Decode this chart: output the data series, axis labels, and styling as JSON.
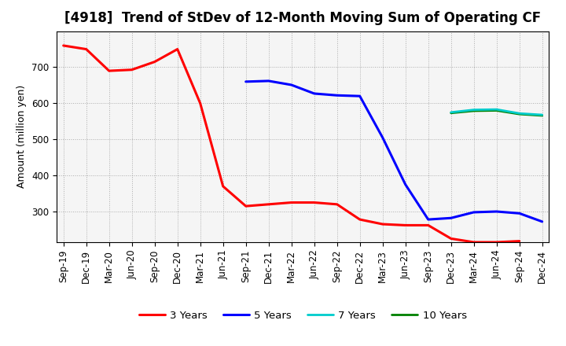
{
  "title": "[4918]  Trend of StDev of 12-Month Moving Sum of Operating CF",
  "ylabel": "Amount (million yen)",
  "x_labels": [
    "Sep-19",
    "Dec-19",
    "Mar-20",
    "Jun-20",
    "Sep-20",
    "Dec-20",
    "Mar-21",
    "Jun-21",
    "Sep-21",
    "Dec-21",
    "Mar-22",
    "Jun-22",
    "Sep-22",
    "Dec-22",
    "Mar-23",
    "Jun-23",
    "Sep-23",
    "Dec-23",
    "Mar-24",
    "Jun-24",
    "Sep-24",
    "Dec-24"
  ],
  "series": {
    "3 Years": {
      "color": "#FF0000",
      "data_x": [
        0,
        1,
        2,
        3,
        4,
        5,
        6,
        7,
        8,
        9,
        10,
        11,
        12,
        13,
        14,
        15,
        16,
        17,
        18,
        19,
        20,
        21
      ],
      "data_y": [
        760,
        750,
        690,
        693,
        715,
        750,
        600,
        370,
        315,
        320,
        325,
        325,
        320,
        278,
        265,
        262,
        262,
        225,
        215,
        215,
        218,
        null
      ]
    },
    "5 Years": {
      "color": "#0000FF",
      "data_x": [
        8,
        9,
        10,
        11,
        12,
        13,
        14,
        15,
        16,
        17,
        18,
        19,
        20,
        21
      ],
      "data_y": [
        660,
        662,
        651,
        627,
        622,
        620,
        505,
        375,
        278,
        282,
        298,
        300,
        295,
        272
      ]
    },
    "7 Years": {
      "color": "#00CCCC",
      "data_x": [
        17,
        18,
        19,
        20,
        21
      ],
      "data_y": [
        575,
        582,
        583,
        572,
        568
      ]
    },
    "10 Years": {
      "color": "#008000",
      "data_x": [
        17,
        18,
        19,
        20,
        21
      ],
      "data_y": [
        573,
        579,
        580,
        570,
        566
      ]
    }
  },
  "ylim": [
    215,
    800
  ],
  "yticks": [
    300,
    400,
    500,
    600,
    700
  ],
  "grid_color": "#999999",
  "background_color": "#ffffff",
  "plot_bg_color": "#f5f5f5",
  "title_fontsize": 12,
  "label_fontsize": 9,
  "tick_fontsize": 8.5
}
